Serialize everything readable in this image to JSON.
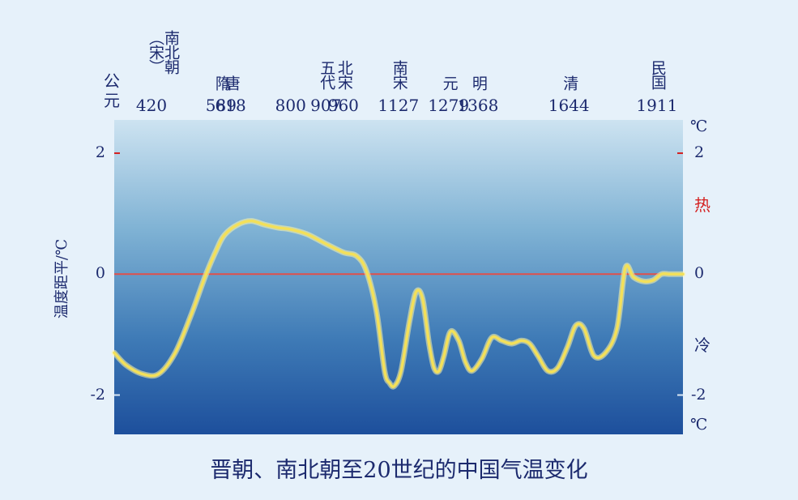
{
  "chart_data": {
    "type": "line",
    "title": "晋朝、南北朝至20世纪的中国气温变化",
    "ylabel": "温度距平/℃",
    "x_era_label": "公元",
    "unit_label": "℃",
    "warm_label": "热",
    "cold_label": "冷",
    "ylim": [
      -2.65,
      2.55
    ],
    "xlim": [
      265,
      1990
    ],
    "y_ticks": [
      "2",
      "0",
      "-2"
    ],
    "dynasties": [
      {
        "name": "南北朝（宋）",
        "year": "420"
      },
      {
        "name": "隋",
        "year": "589"
      },
      {
        "name": "唐",
        "year": "618"
      },
      {
        "name": "",
        "year": "800"
      },
      {
        "name": "五代",
        "year": "907"
      },
      {
        "name": "北宋",
        "year": "960"
      },
      {
        "name": "南宋",
        "year": "1127"
      },
      {
        "name": "元",
        "year": "1279"
      },
      {
        "name": "明",
        "year": "1368"
      },
      {
        "name": "清",
        "year": "1644"
      },
      {
        "name": "民国",
        "year": "1911"
      }
    ],
    "reference_line": 0,
    "series": [
      {
        "x": [
          265,
          300,
          350,
          400,
          450,
          500,
          540,
          575,
          600,
          640,
          680,
          720,
          760,
          800,
          850,
          900,
          960,
          1000,
          1030,
          1060,
          1085,
          1100,
          1115,
          1135,
          1160,
          1180,
          1200,
          1220,
          1235,
          1250,
          1265,
          1285,
          1310,
          1330,
          1350,
          1380,
          1410,
          1440,
          1470,
          1500,
          1525,
          1550,
          1580,
          1610,
          1640,
          1665,
          1690,
          1720,
          1755,
          1790,
          1815,
          1840,
          1870,
          1900,
          1925,
          1950,
          1975,
          1990
        ],
        "y": [
          -1.3,
          -1.5,
          -1.65,
          -1.65,
          -1.3,
          -0.65,
          -0.05,
          0.4,
          0.65,
          0.82,
          0.88,
          0.82,
          0.77,
          0.74,
          0.66,
          0.52,
          0.36,
          0.3,
          0.05,
          -0.6,
          -1.6,
          -1.8,
          -1.85,
          -1.6,
          -0.8,
          -0.3,
          -0.4,
          -1.15,
          -1.55,
          -1.6,
          -1.35,
          -0.95,
          -1.1,
          -1.45,
          -1.6,
          -1.4,
          -1.05,
          -1.1,
          -1.15,
          -1.1,
          -1.15,
          -1.35,
          -1.6,
          -1.55,
          -1.2,
          -0.85,
          -0.9,
          -1.35,
          -1.3,
          -0.9,
          0.1,
          -0.05,
          -0.12,
          -0.1,
          0.0,
          0.0,
          0.0,
          0.0
        ]
      }
    ]
  }
}
